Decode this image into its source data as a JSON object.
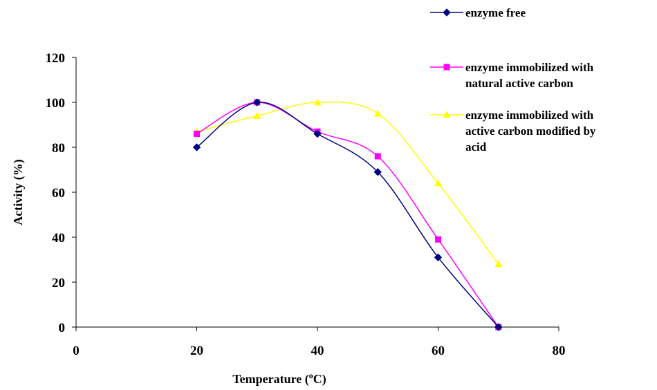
{
  "chart_data": {
    "type": "line",
    "xlabel_main": "Temperature (",
    "xlabel_sup": "o",
    "xlabel_end": "C)",
    "ylabel": "Activity (%)",
    "xlim": [
      0,
      80
    ],
    "ylim": [
      0,
      120
    ],
    "x_ticks": [
      "0",
      "20",
      "40",
      "60",
      "80"
    ],
    "y_ticks": [
      "0",
      "20",
      "40",
      "60",
      "80",
      "100",
      "120"
    ],
    "grid": false,
    "legend_position": "top-right",
    "series": [
      {
        "name": "enzyme free",
        "legend_lines": [
          "enzyme free"
        ],
        "color": "#000080",
        "marker": "diamond",
        "x": [
          20,
          30,
          40,
          50,
          60,
          70
        ],
        "y": [
          80,
          100,
          86,
          69,
          31,
          0
        ]
      },
      {
        "name": "enzyme immobilized with natural active carbon",
        "legend_lines": [
          " enzyme immobilized with",
          "natural active carbon"
        ],
        "color": "#FF00FF",
        "marker": "square",
        "x": [
          20,
          30,
          40,
          50,
          60,
          70
        ],
        "y": [
          86,
          100,
          87,
          76,
          39,
          0
        ]
      },
      {
        "name": "enzyme immobilized with active carbon modified by acid",
        "legend_lines": [
          "enzyme immobilized with",
          "active carbon modified by",
          "acid"
        ],
        "color": "#FFFF00",
        "marker": "triangle",
        "x": [
          20,
          30,
          40,
          50,
          60,
          70
        ],
        "y": [
          87,
          94,
          100,
          95,
          64,
          28
        ]
      }
    ]
  }
}
